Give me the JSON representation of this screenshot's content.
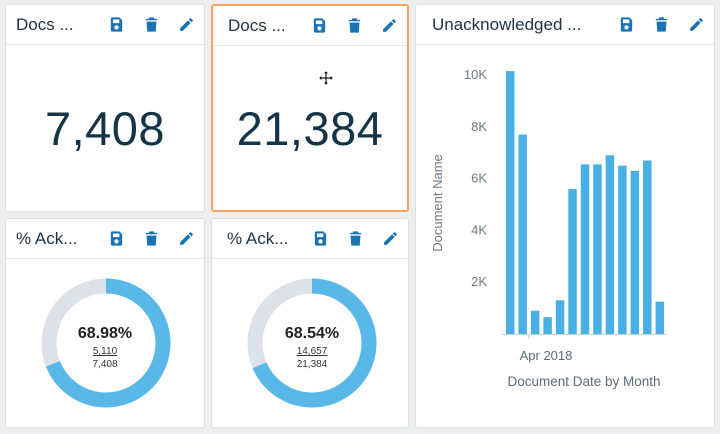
{
  "cards": {
    "docs_a": {
      "title": "Docs ...",
      "value": "7,408"
    },
    "docs_b": {
      "title": "Docs ...",
      "value": "21,384"
    },
    "ack_a": {
      "title": "% Ack...",
      "percent": "68.98%",
      "numerator": "5,110",
      "denominator": "7,408",
      "fraction": 0.6898
    },
    "ack_b": {
      "title": "% Ack...",
      "percent": "68.54%",
      "numerator": "14,657",
      "denominator": "21,384",
      "fraction": 0.6854
    },
    "unack": {
      "title": "Unacknowledged ..."
    }
  },
  "icons": [
    "save-icon",
    "trash-icon",
    "edit-icon"
  ],
  "colors": {
    "accent": "#1a73b5",
    "bar": "#48b0e5",
    "donut_fill": "#5ab8e8",
    "donut_track": "#dde2e8",
    "selected_border": "#f5a55c"
  },
  "chart_data": {
    "type": "bar",
    "ylabel": "Document Name",
    "xlabel": "Document Date by Month",
    "x_tick_labels": [
      "Apr 2018"
    ],
    "y_tick_labels": [
      "2K",
      "4K",
      "6K",
      "8K",
      "10K"
    ],
    "ylim": [
      0,
      10500
    ],
    "values": [
      10150,
      7700,
      900,
      650,
      1300,
      5600,
      6550,
      6550,
      6900,
      6500,
      6300,
      6700,
      1250
    ],
    "legend": "none",
    "grid": false
  }
}
